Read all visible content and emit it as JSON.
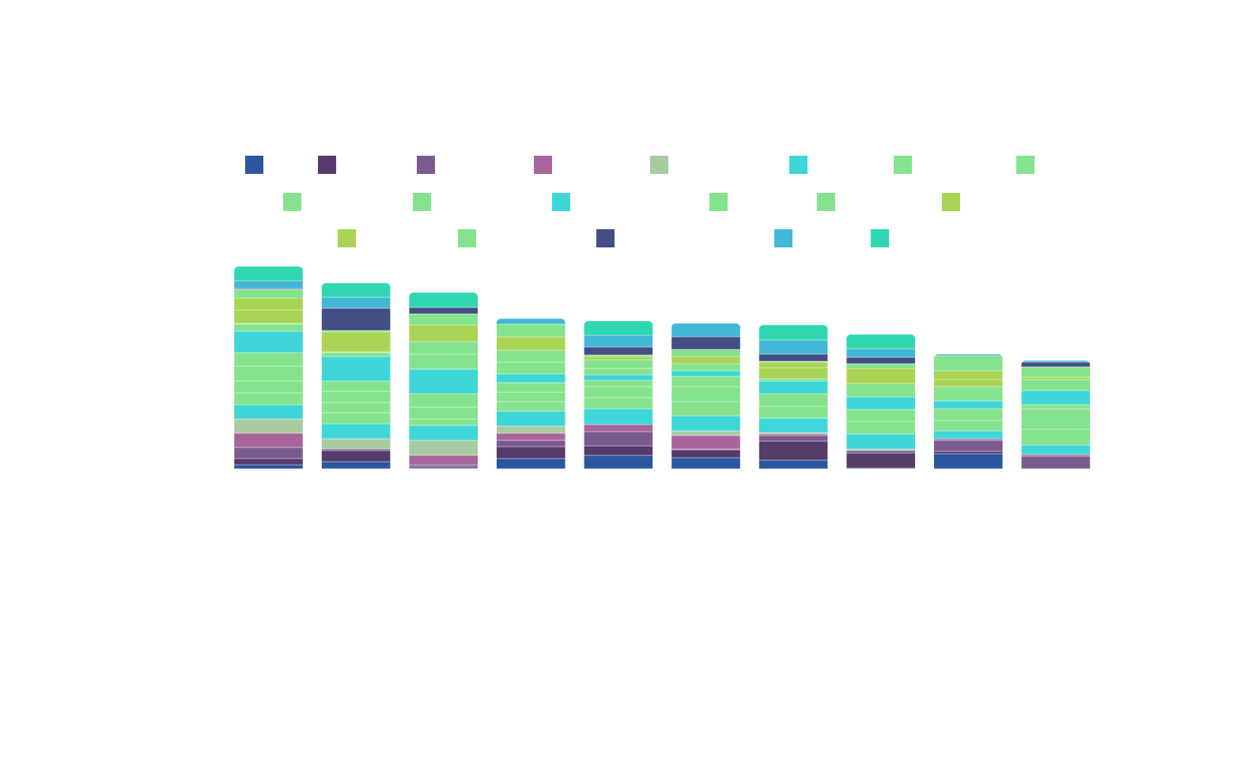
{
  "chart_data": {
    "type": "bar",
    "stacked": true,
    "categories": [
      null,
      null,
      null,
      null,
      null,
      null,
      null,
      null,
      null,
      null
    ],
    "series": [
      {
        "color": "#2b56a0",
        "values": [
          5,
          9,
          1,
          13,
          17,
          14,
          11,
          1,
          19,
          0
        ]
      },
      {
        "color": "#573b6b",
        "values": [
          8,
          14,
          2,
          15,
          12,
          10,
          24,
          19,
          3,
          0
        ]
      },
      {
        "color": "#7b5a90",
        "values": [
          14,
          2,
          2,
          8,
          18,
          1,
          7,
          3,
          14,
          16
        ]
      },
      {
        "color": "#a8659c",
        "values": [
          18,
          0,
          12,
          9,
          9,
          17,
          2,
          0,
          2,
          2
        ]
      },
      {
        "color": "#a9cba1",
        "values": [
          18,
          13,
          19,
          9,
          0,
          6,
          2,
          2,
          0,
          0
        ]
      },
      {
        "color": "#3fd6d8",
        "values": [
          18,
          19,
          19,
          19,
          20,
          19,
          18,
          19,
          10,
          12
        ]
      },
      {
        "color": "#84e38c",
        "values": [
          15,
          14,
          8,
          12,
          14,
          18,
          15,
          16,
          13,
          20
        ]
      },
      {
        "color": "#84e38c",
        "values": [
          15,
          13,
          15,
          12,
          14,
          19,
          16,
          15,
          15,
          26
        ]
      },
      {
        "color": "#84e38c",
        "values": [
          19,
          14,
          17,
          12,
          8,
          13,
          0,
          0,
          0,
          5
        ]
      },
      {
        "color": "#84e38c",
        "values": [
          17,
          13,
          0,
          0,
          0,
          0,
          0,
          0,
          0,
          0
        ]
      },
      {
        "color": "#3fd6d8",
        "values": [
          27,
          31,
          31,
          11,
          7,
          7,
          16,
          16,
          10,
          18
        ]
      },
      {
        "color": "#84e38c",
        "values": [
          9,
          5,
          19,
          15,
          8,
          9,
          3,
          17,
          18,
          14
        ]
      },
      {
        "color": "#84e38c",
        "values": [
          1,
          1,
          16,
          15,
          11,
          0,
          0,
          0,
          0,
          0
        ]
      },
      {
        "color": "#a9d454",
        "values": [
          17,
          25,
          21,
          17,
          4,
          9,
          14,
          19,
          9,
          3
        ]
      },
      {
        "color": "#a9d454",
        "values": [
          15,
          0,
          0,
          0,
          0,
          0,
          7,
          0,
          11,
          0
        ]
      },
      {
        "color": "#84e38c",
        "values": [
          11,
          2,
          14,
          16,
          2,
          9,
          1,
          6,
          19,
          13
        ]
      },
      {
        "color": "#424e84",
        "values": [
          1,
          28,
          8,
          0,
          10,
          16,
          9,
          8,
          0,
          6
        ]
      },
      {
        "color": "#42b8d6",
        "values": [
          10,
          14,
          0,
          7,
          15,
          17,
          18,
          11,
          2,
          2
        ]
      },
      {
        "color": "#2fd8b0",
        "values": [
          18,
          18,
          19,
          0,
          18,
          0,
          19,
          18,
          0,
          0
        ]
      }
    ]
  }
}
